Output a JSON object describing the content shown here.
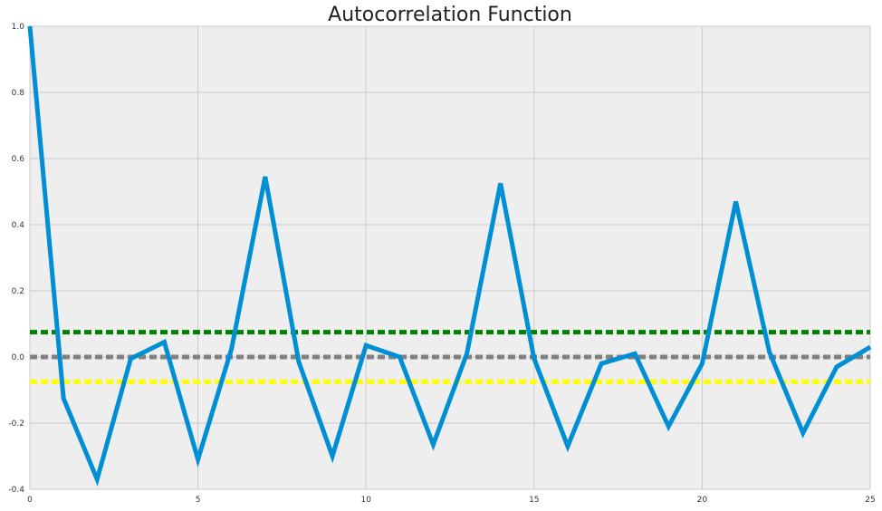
{
  "chart_data": {
    "type": "line",
    "title": "Autocorrelation Function",
    "xlabel": "",
    "ylabel": "",
    "xlim": [
      0,
      25
    ],
    "ylim": [
      -0.4,
      1.0
    ],
    "x_ticks": [
      0,
      5,
      10,
      15,
      20,
      25
    ],
    "x_tick_labels": [
      "0",
      "5",
      "10",
      "15",
      "20",
      "25"
    ],
    "y_ticks": [
      -0.4,
      -0.2,
      0.0,
      0.2,
      0.4,
      0.6,
      0.8,
      1.0
    ],
    "y_tick_labels": [
      "-0.4",
      "-0.2",
      "0.0",
      "0.2",
      "0.4",
      "0.6",
      "0.8",
      "1.0"
    ],
    "grid": true,
    "legend": "none",
    "series": [
      {
        "color": "#008fd5",
        "x": [
          0,
          1,
          2,
          3,
          4,
          5,
          6,
          7,
          8,
          9,
          10,
          11,
          12,
          13,
          14,
          15,
          16,
          17,
          18,
          19,
          20,
          21,
          22,
          23,
          24,
          25
        ],
        "values": [
          1.0,
          -0.125,
          -0.37,
          -0.005,
          0.045,
          -0.31,
          0.025,
          0.545,
          -0.015,
          -0.3,
          0.035,
          0.0,
          -0.265,
          0.01,
          0.525,
          -0.005,
          -0.27,
          -0.02,
          0.01,
          -0.21,
          -0.02,
          0.47,
          0.015,
          -0.23,
          -0.03,
          0.03
        ]
      }
    ],
    "reference_lines": [
      {
        "y": 0.075,
        "color": "#007f00",
        "style": "dashed"
      },
      {
        "y": 0.0,
        "color": "#808080",
        "style": "dashed"
      },
      {
        "y": -0.075,
        "color": "#ffff00",
        "style": "dashed"
      }
    ],
    "colors": {
      "plot_background": "#eeeeee",
      "grid": "#cbcbcb",
      "series": "#008fd5"
    }
  }
}
